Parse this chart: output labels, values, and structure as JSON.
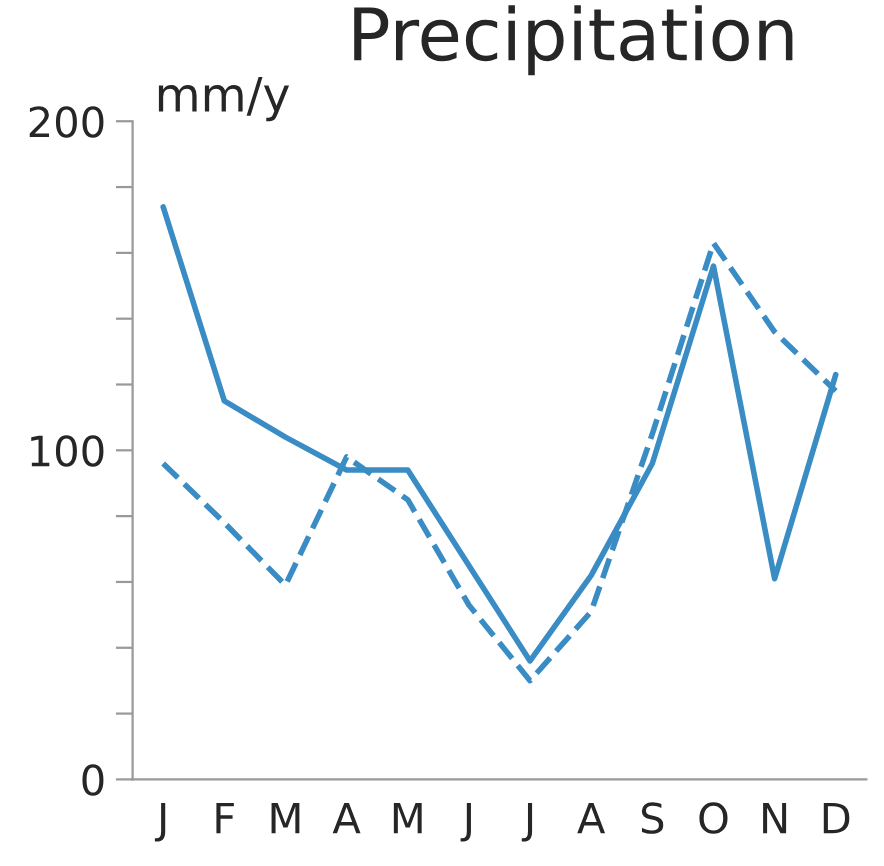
{
  "chart_data": {
    "type": "line",
    "title": "Precipitation",
    "ylabel": "mm/y",
    "categories": [
      "J",
      "F",
      "M",
      "A",
      "M",
      "J",
      "J",
      "A",
      "S",
      "O",
      "N",
      "D"
    ],
    "series": [
      {
        "color": "#3a8cc4",
        "line_style": "solid",
        "values": [
          174,
          115,
          104,
          94,
          94,
          65,
          36,
          62,
          96,
          156,
          61,
          123
        ]
      },
      {
        "color": "#3a8cc4",
        "line_style": "dashed",
        "values": [
          96,
          78,
          59,
          98,
          85,
          53,
          30,
          51,
          105,
          163,
          136,
          118
        ]
      }
    ],
    "ylim": [
      0,
      200
    ],
    "yticks": [
      0,
      {
        "value": 20,
        "label": null
      },
      {
        "value": 40,
        "label": null
      },
      {
        "value": 60,
        "label": null
      },
      {
        "value": 80,
        "label": null
      },
      100,
      {
        "value": 120,
        "label": null
      },
      {
        "value": 140,
        "label": null
      },
      {
        "value": 160,
        "label": null
      },
      {
        "value": 180,
        "label": null
      },
      200
    ],
    "grid": false,
    "legend": false,
    "marker": "none"
  }
}
